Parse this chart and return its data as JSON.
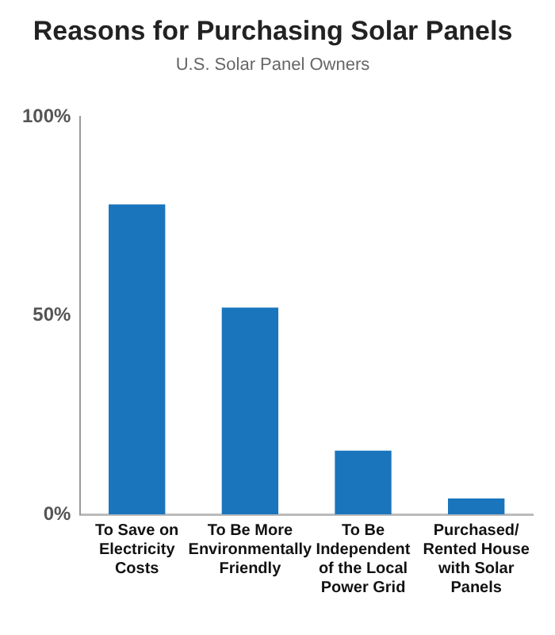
{
  "chart_data": {
    "type": "bar",
    "title": "Reasons for Purchasing Solar Panels",
    "subtitle": "U.S. Solar Panel Owners",
    "categories": [
      "To Save on Electricity Costs",
      "To Be More Environmentally Friendly",
      "To Be Independent of the Local Power Grid",
      "Purchased/ Rented House with Solar Panels"
    ],
    "values": [
      78,
      52,
      16,
      4
    ],
    "color": "#1a75bc",
    "ylim": [
      0,
      100
    ],
    "yticks": [
      {
        "value": 0,
        "label": "0%"
      },
      {
        "value": 50,
        "label": "50%"
      },
      {
        "value": 100,
        "label": "100%"
      }
    ],
    "grid": false,
    "legend": false
  }
}
